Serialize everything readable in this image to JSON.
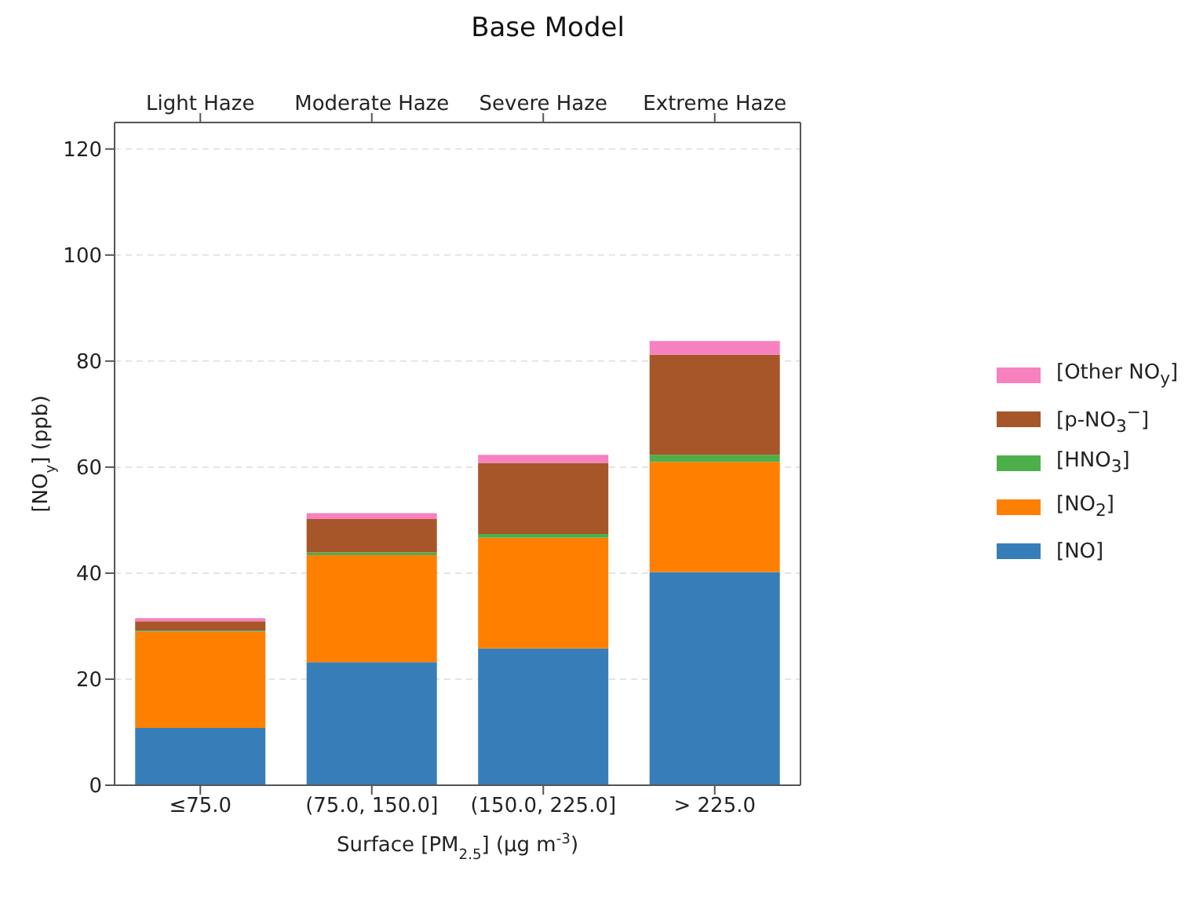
{
  "chart_data": {
    "type": "bar",
    "title": "Base Model",
    "xlabel": "Surface [PM$_{2.5}$] (µg m$^{-3}$)",
    "ylabel": "[NO$_{y}$] (ppb)",
    "categories": [
      "≤75.0",
      "(75.0, 150.0]",
      "(150.0, 225.0]",
      "> 225.0"
    ],
    "annotations": [
      "Light Haze",
      "Moderate Haze",
      "Severe Haze",
      "Extreme Haze"
    ],
    "stacked": true,
    "series": [
      {
        "name": "[NO]",
        "color": "#377eb8",
        "values": [
          10.8,
          23.2,
          25.8,
          40.2
        ]
      },
      {
        "name": "[NO$_{2}$]",
        "color": "#ff7f00",
        "values": [
          18.1,
          20.2,
          20.9,
          20.8
        ]
      },
      {
        "name": "[HNO$_{3}$]",
        "color": "#4daf4a",
        "values": [
          0.2,
          0.5,
          0.7,
          1.3
        ]
      },
      {
        "name": "[p-NO$_{3}$$^{−}$]",
        "color": "#a65628",
        "values": [
          1.8,
          6.3,
          13.4,
          18.9
        ]
      },
      {
        "name": "[Other NO$_{y}$]",
        "color": "#f781bf",
        "values": [
          0.6,
          1.1,
          1.5,
          2.6
        ]
      }
    ],
    "ylim": [
      0,
      125
    ],
    "yticks": [
      0,
      20,
      40,
      60,
      80,
      100,
      120
    ],
    "grid": "y",
    "legend": "right"
  }
}
